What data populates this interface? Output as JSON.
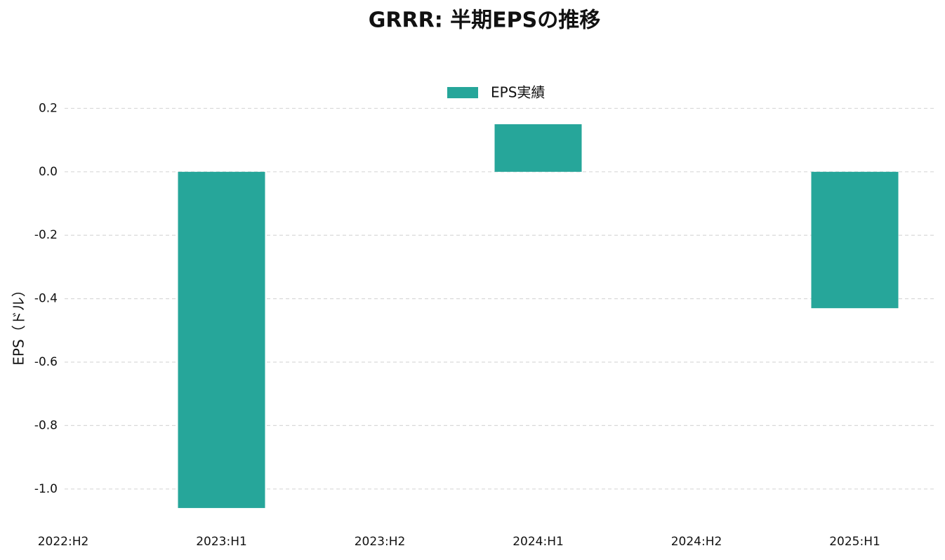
{
  "chart_data": {
    "type": "bar",
    "title": "GRRR: 半期EPSの推移",
    "y_label": "EPS（ドル）",
    "categories": [
      "2022:H2",
      "2023:H1",
      "2023:H2",
      "2024:H1",
      "2024:H2",
      "2025:H1"
    ],
    "series": [
      {
        "name": "EPS実績",
        "color": "#26a69a",
        "values": [
          null,
          -1.06,
          null,
          0.15,
          null,
          -0.43
        ]
      }
    ],
    "ylim": [
      -1.1,
      0.22
    ],
    "yticks": [
      0.2,
      {
        "value": 0,
        "label": "0.0"
      },
      -0.2,
      -0.4,
      -0.6,
      -0.8,
      {
        "value": -1,
        "label": "-1.0"
      }
    ],
    "grid": true,
    "legend": "top"
  }
}
